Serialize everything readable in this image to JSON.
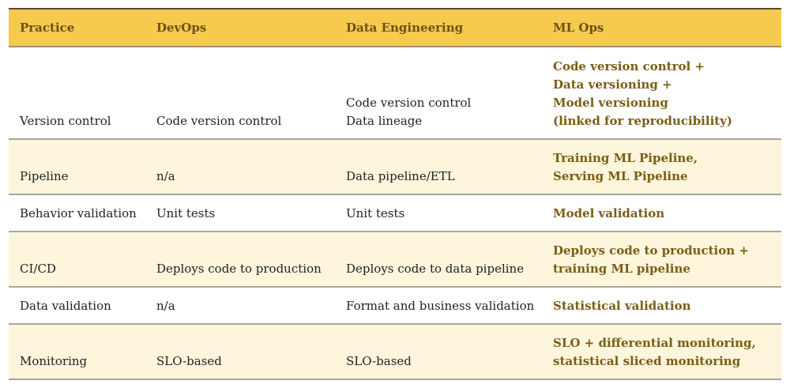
{
  "colors": {
    "header_bg": "#f6ca4f",
    "header_text": "#6b5212",
    "stripe_bg": "#fdf5dc",
    "mlops_text": "#7a5e14"
  },
  "headers": [
    "Practice",
    "DevOps",
    "Data Engineering",
    "ML Ops"
  ],
  "rows": [
    {
      "practice": "Version control",
      "devops": [
        "Code version control"
      ],
      "data_eng": [
        "Code version control",
        "Data lineage"
      ],
      "mlops": [
        "Code version control +",
        "Data versioning +",
        "Model versioning",
        "(linked for reproducibility)"
      ]
    },
    {
      "practice": "Pipeline",
      "devops": [
        "n/a"
      ],
      "data_eng": [
        "Data pipeline/ETL"
      ],
      "mlops": [
        "Training ML Pipeline,",
        "Serving ML Pipeline"
      ]
    },
    {
      "practice": "Behavior validation",
      "devops": [
        "Unit tests"
      ],
      "data_eng": [
        "Unit tests"
      ],
      "mlops": [
        "Model validation"
      ]
    },
    {
      "practice": "CI/CD",
      "devops": [
        "Deploys code to production"
      ],
      "data_eng": [
        "Deploys code to data pipeline"
      ],
      "mlops": [
        "Deploys code to production +",
        "training ML pipeline"
      ]
    },
    {
      "practice": "Data validation",
      "devops": [
        "n/a"
      ],
      "data_eng": [
        "Format and business validation"
      ],
      "mlops": [
        "Statistical validation"
      ]
    },
    {
      "practice": "Monitoring",
      "devops": [
        "SLO-based"
      ],
      "data_eng": [
        "SLO-based"
      ],
      "mlops": [
        "SLO + differential monitoring,",
        "statistical sliced monitoring"
      ]
    }
  ]
}
